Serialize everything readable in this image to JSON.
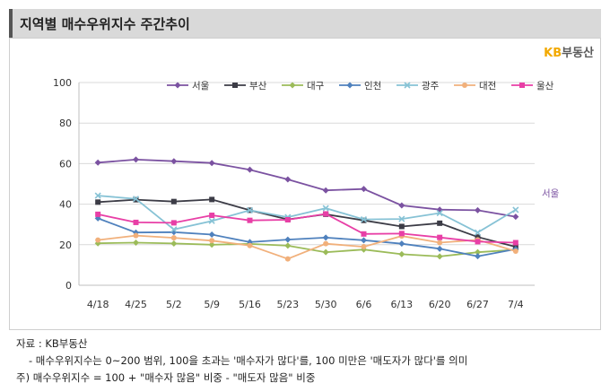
{
  "header": {
    "title": "지역별 매수우위지수 주간추이"
  },
  "logo": {
    "kb": "KB",
    "rest": "부동산"
  },
  "notes": {
    "source": "자료 : KB부동산",
    "line1": "- 매수우위지수는 0~200 범위, 100을 초과는 '매수자가 많다'를, 100 미만은 '매도자가 많다'를 의미",
    "line2": "주) 매수우위지수 = 100 + \"매수자 많음\" 비중 - \"매도자 많음\" 비중"
  },
  "chart_data": {
    "type": "line",
    "title": "",
    "xlabel": "",
    "ylabel": "",
    "categories": [
      "4/18",
      "4/25",
      "5/2",
      "5/9",
      "5/16",
      "5/23",
      "5/30",
      "6/6",
      "6/13",
      "6/20",
      "6/27",
      "7/4"
    ],
    "yticks": [
      "0",
      "20",
      "40",
      "60",
      "80",
      "100"
    ],
    "ylim": [
      0,
      100
    ],
    "grid": true,
    "legend_position": "top",
    "annotation": "서울",
    "series": [
      {
        "name": "서울",
        "color": "#7b52a1",
        "marker": "diamond",
        "values": [
          60.5,
          62.0,
          61.2,
          60.3,
          57.0,
          52.2,
          46.8,
          47.5,
          39.4,
          37.3,
          37.0,
          33.8
        ]
      },
      {
        "name": "부산",
        "color": "#3c3c46",
        "marker": "square",
        "values": [
          41.0,
          42.2,
          41.3,
          42.3,
          37.0,
          32.5,
          35.0,
          32.0,
          29.0,
          30.6,
          23.8,
          19.0
        ]
      },
      {
        "name": "대구",
        "color": "#9bbb59",
        "marker": "diamond",
        "values": [
          20.7,
          21.0,
          20.6,
          20.0,
          20.4,
          19.5,
          16.3,
          17.6,
          15.3,
          14.2,
          16.3,
          17.5
        ]
      },
      {
        "name": "인천",
        "color": "#4f81bd",
        "marker": "diamond",
        "values": [
          33.0,
          26.0,
          26.2,
          25.0,
          21.3,
          22.5,
          23.5,
          22.2,
          20.5,
          18.0,
          14.3,
          17.8
        ]
      },
      {
        "name": "광주",
        "color": "#86c2d5",
        "marker": "x",
        "values": [
          44.2,
          42.6,
          27.5,
          31.7,
          37.0,
          33.6,
          38.0,
          32.5,
          32.7,
          35.6,
          26.0,
          37.2
        ]
      },
      {
        "name": "대전",
        "color": "#f1b07b",
        "marker": "circle",
        "values": [
          22.3,
          24.5,
          23.4,
          22.0,
          19.6,
          13.0,
          20.5,
          19.0,
          24.3,
          21.0,
          22.4,
          16.8
        ]
      },
      {
        "name": "울산",
        "color": "#e83fa6",
        "marker": "square",
        "values": [
          35.0,
          31.0,
          30.8,
          34.5,
          32.0,
          32.3,
          35.2,
          25.3,
          25.5,
          23.6,
          21.5,
          21.0
        ]
      }
    ]
  }
}
